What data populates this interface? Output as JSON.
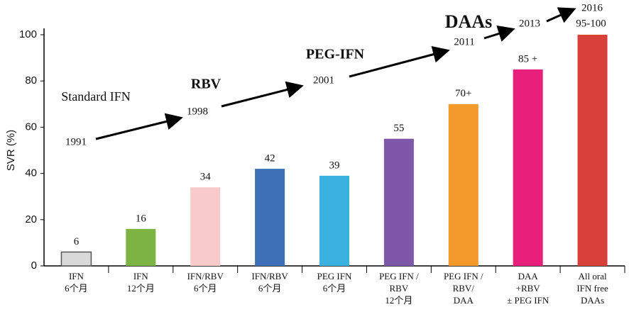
{
  "chart_data": {
    "type": "bar",
    "y_label": "SVR (%)",
    "categories": [
      [
        "IFN",
        "6个月"
      ],
      [
        "IFN",
        "12个月"
      ],
      [
        "IFN/RBV",
        "6个月"
      ],
      [
        "IFN/RBV",
        "6个月"
      ],
      [
        "PEG IFN",
        "6个月"
      ],
      [
        "PEG IFN /",
        "RBV",
        "12个月"
      ],
      [
        "PEG IFN /",
        "RBV/",
        "DAA"
      ],
      [
        "DAA",
        "+RBV",
        "± PEG IFN"
      ],
      [
        "All oral",
        "IFN free",
        "DAAs"
      ]
    ],
    "values": [
      6,
      16,
      34,
      42,
      39,
      55,
      70,
      85,
      100
    ],
    "value_labels": [
      "6",
      "16",
      "34",
      "42",
      "39",
      "55",
      "70+",
      "85 +",
      "95-100"
    ],
    "colors": [
      "#d9d9d9",
      "#7cb342",
      "#f9caca",
      "#3c6fb6",
      "#3bb1e0",
      "#7e57a8",
      "#f4992c",
      "#e9207b",
      "#d8403a"
    ],
    "ylim": [
      0,
      100
    ],
    "yticks": [
      0,
      20,
      40,
      60,
      80,
      100
    ],
    "timeline": [
      "1991",
      "1998",
      "2001",
      "2011",
      "2013",
      "2016"
    ],
    "eras": [
      {
        "label": "Standard IFN",
        "color": "#8ec9e6"
      },
      {
        "label": "RBV",
        "color": "#3aa04a"
      },
      {
        "label": "PEG-IFN",
        "color": "#1f2a6b"
      },
      {
        "label": "DAAs",
        "color": "#c8282a"
      }
    ]
  }
}
